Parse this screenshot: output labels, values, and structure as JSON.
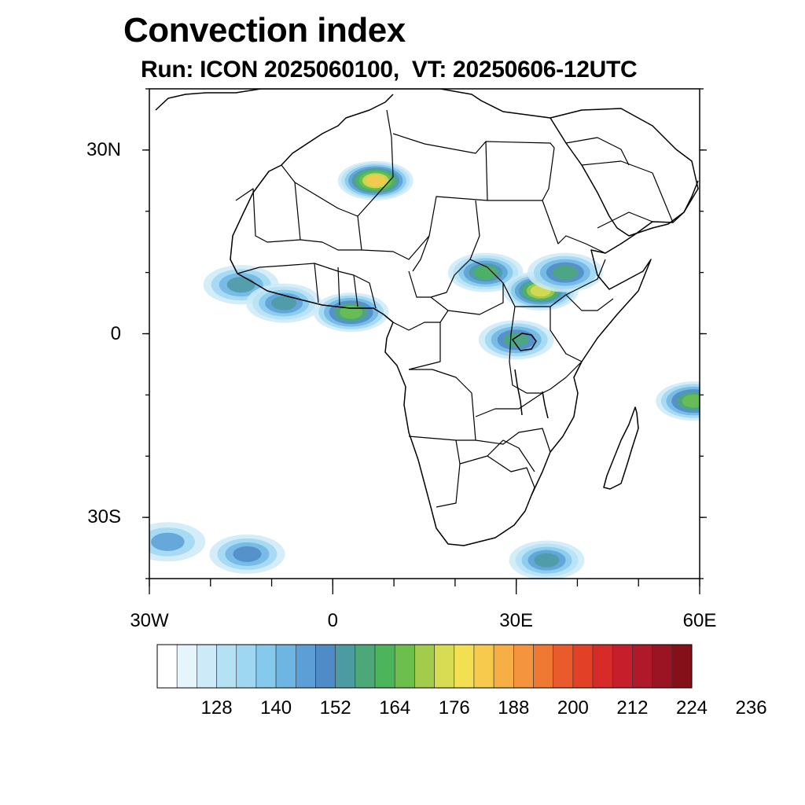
{
  "title": "Convection index",
  "subtitle": "Run: ICON 2025060100,  VT: 20250606-12UTC",
  "map": {
    "lat_range": [
      -40,
      40
    ],
    "lon_range": [
      -30,
      60
    ],
    "lat_ticks": [
      {
        "value": 30,
        "label": "30N"
      },
      {
        "value": 0,
        "label": "0"
      },
      {
        "value": -30,
        "label": "30S"
      }
    ],
    "lon_ticks": [
      {
        "value": -30,
        "label": "30W"
      },
      {
        "value": 0,
        "label": "0"
      },
      {
        "value": 30,
        "label": "30E"
      },
      {
        "value": 60,
        "label": "60E"
      }
    ]
  },
  "colorbar": {
    "colors": [
      "#ffffff",
      "#e6f4fb",
      "#cdeaf8",
      "#b5e1f5",
      "#9dd7f2",
      "#85c9ec",
      "#6fb5e3",
      "#5c9fd6",
      "#4f8bc6",
      "#4c9aa2",
      "#4ca878",
      "#4cb45a",
      "#6cbf4c",
      "#a4cc4c",
      "#d8dc52",
      "#f2e052",
      "#f7c94c",
      "#f7ae45",
      "#f5943e",
      "#ef7833",
      "#e95a2c",
      "#e24128",
      "#d82b29",
      "#c61f2b",
      "#b0192a",
      "#9b1424",
      "#851019"
    ],
    "tick_labels": [
      "128",
      "140",
      "152",
      "164",
      "176",
      "188",
      "200",
      "212",
      "224",
      "236"
    ]
  },
  "chart_data": {
    "type": "heatmap",
    "title": "Convection index",
    "subtitle": "Run: ICON 2025060100,  VT: 20250606-12UTC",
    "xlim": [
      -30,
      60
    ],
    "ylim": [
      -40,
      40
    ],
    "levels_min": 122,
    "levels_step": 6,
    "levels_count": 27,
    "convective_regions": [
      {
        "lon": -15,
        "lat": 8,
        "value": 170
      },
      {
        "lon": -8,
        "lat": 5,
        "value": 175
      },
      {
        "lon": 3,
        "lat": 3.5,
        "value": 190
      },
      {
        "lon": 7,
        "lat": 25,
        "value": 215
      },
      {
        "lon": 25,
        "lat": 10,
        "value": 185
      },
      {
        "lon": 34,
        "lat": 7,
        "value": 205
      },
      {
        "lon": 30,
        "lat": -1,
        "value": 180
      },
      {
        "lon": 38,
        "lat": 10,
        "value": 178
      },
      {
        "lon": 59,
        "lat": -11,
        "value": 190
      },
      {
        "lon": 35,
        "lat": -37,
        "value": 175
      },
      {
        "lon": -27,
        "lat": -34,
        "value": 160
      },
      {
        "lon": -14,
        "lat": -36,
        "value": 165
      }
    ]
  }
}
